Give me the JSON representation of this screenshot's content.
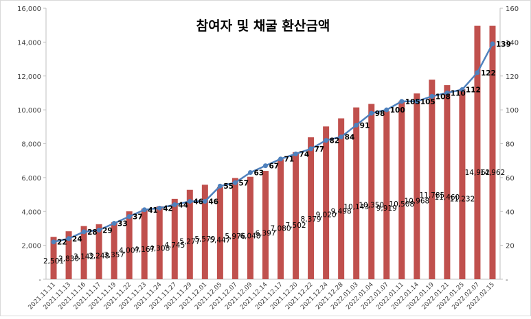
{
  "chart_data": {
    "type": "bar+line",
    "title": "참여자 및 채굴 환산금액",
    "categories": [
      "2021.11.11",
      "2021.11.13",
      "2021.11.16",
      "2021.11.17",
      "2021.11.19",
      "2021.11.22",
      "2021.11.23",
      "2021.11.24",
      "2021.11.27",
      "2021.11.29",
      "2021.12.01",
      "2021.12.05",
      "2021.12.07",
      "2021.12.09",
      "2021.12.14",
      "2021.12.17",
      "2021.12.20",
      "2021.12.22",
      "2021.12.24",
      "2021.12.28",
      "2022.01.03",
      "2022.01.04",
      "2022.01.07",
      "2022.01.11",
      "2022.01.14",
      "2022.01.19",
      "2022.01.21",
      "2022.01.25",
      "2022.02.07",
      "2022.02.15"
    ],
    "series": [
      {
        "kind": "bar",
        "axis": "left",
        "color": "#c0504d",
        "values": [
          2501,
          2830,
          3142,
          3248,
          3357,
          4007,
          4167,
          4308,
          4745,
          5277,
          5579,
          5447,
          5976,
          6048,
          6397,
          7080,
          7502,
          8379,
          9020,
          9498,
          10143,
          10350,
          9919,
          10508,
          10968,
          11785,
          11460,
          11232,
          14962,
          14962
        ],
        "labels": [
          "2,501",
          "2,830",
          "3,142",
          "3,248",
          "3,357",
          "4,007",
          "4,167",
          "4,308",
          "4,745",
          "5,277",
          "5,579",
          "5,447",
          "5,976",
          "6,048",
          "6,397",
          "7,080",
          "7,502",
          "8,379",
          "9,020",
          "9,498",
          "10,143",
          "10,350",
          "9,919",
          "10,508",
          "10,968",
          "11,785",
          "11,460",
          "11,232",
          "14,962",
          "14,962"
        ]
      },
      {
        "kind": "line",
        "axis": "right",
        "color": "#4f81bd",
        "values": [
          22,
          24,
          28,
          29,
          33,
          37,
          41,
          42,
          44,
          46,
          46,
          55,
          57,
          63,
          67,
          71,
          74,
          77,
          82,
          84,
          91,
          98,
          100,
          105,
          105,
          108,
          110,
          112,
          122,
          139
        ],
        "labels": [
          "22",
          "24",
          "28",
          "29",
          "33",
          "37",
          "41",
          "42",
          "44",
          "46",
          "46",
          "55",
          "57",
          "63",
          "67",
          "71",
          "74",
          "77",
          "82",
          "84",
          "91",
          "98",
          "100",
          "105",
          "105",
          "108",
          "110",
          "112",
          "122",
          "139"
        ]
      }
    ],
    "y_left": {
      "min": 0,
      "max": 16000,
      "ticks": [
        0,
        2000,
        4000,
        6000,
        8000,
        10000,
        12000,
        14000,
        16000
      ],
      "tick_labels": [
        "-",
        "2,000",
        "4,000",
        "6,000",
        "8,000",
        "10,000",
        "12,000",
        "14,000",
        "16,000"
      ]
    },
    "y_right": {
      "min": 0,
      "max": 160,
      "ticks": [
        0,
        20,
        40,
        60,
        80,
        100,
        120,
        140,
        160
      ],
      "tick_labels": [
        "-",
        "20",
        "40",
        "60",
        "80",
        "100",
        "120",
        "140",
        "160"
      ]
    },
    "grid": false,
    "legend": "none"
  }
}
